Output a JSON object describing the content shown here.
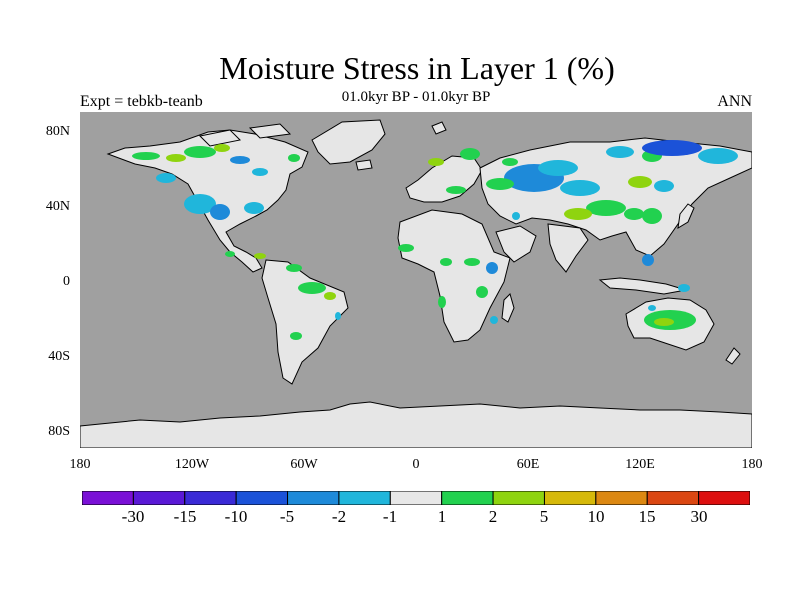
{
  "title": "Moisture Stress in Layer 1 (%)",
  "subtitle": "01.0kyr BP - 01.0kyr BP",
  "left_label": "Expt = tebkb-teanb",
  "right_label": "ANN",
  "axes": {
    "y_labels": [
      "80N",
      "40N",
      "0",
      "40S",
      "80S"
    ],
    "x_labels": [
      "180",
      "120W",
      "60W",
      "0",
      "60E",
      "120E",
      "180"
    ]
  },
  "colorbar": {
    "labels": [
      "-30",
      "-15",
      "-10",
      "-5",
      "-2",
      "-1",
      "1",
      "2",
      "5",
      "10",
      "15",
      "30"
    ],
    "colors": [
      "#7a10d6",
      "#5a19d6",
      "#3a2ad6",
      "#1b52d8",
      "#1e8ad9",
      "#20b6db",
      "#e8e8e8",
      "#22d14f",
      "#8fd40f",
      "#d6b90a",
      "#dc8812",
      "#db4712",
      "#dd0f0f"
    ]
  },
  "colors": {
    "ocean": "#a0a0a0",
    "land_neutral": "#e6e6e6",
    "coast": "#000000"
  }
}
